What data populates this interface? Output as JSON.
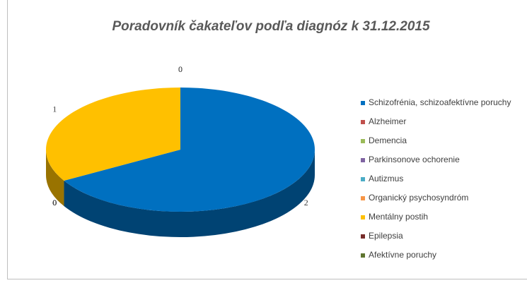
{
  "chart_data": {
    "type": "pie3d",
    "title": "Poradovník čakateľov podľa diagnóz k 31.12.2015",
    "categories": [
      "Schizofrénia, schizoafektívne poruchy",
      "Alzheimer",
      "Demencia",
      "Parkinsonove ochorenie",
      "Autizmus",
      "Organický psychosyndróm",
      "Mentálny postih",
      "Epilepsia",
      "Afektívne poruchy"
    ],
    "values": [
      2,
      0,
      0,
      0,
      0,
      0,
      1,
      0,
      0
    ],
    "colors": [
      "#0070c0",
      "#c0504d",
      "#9bbb59",
      "#8064a2",
      "#4bacc6",
      "#f79646",
      "#ffc000",
      "#772c2a",
      "#5f7530"
    ],
    "legend": "right"
  }
}
